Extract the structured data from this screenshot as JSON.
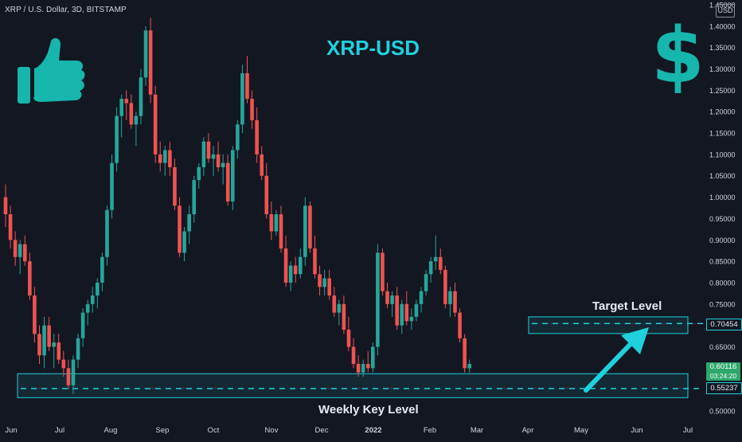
{
  "header": {
    "symbol_line": "XRP / U.S. Dollar, 3D, BITSTAMP",
    "title": "XRP-USD",
    "dollar_glyph": "$",
    "currency": "USD"
  },
  "annotations": {
    "target_label": "Target Level",
    "weekly_label": "Weekly Key Level",
    "target_price": "0.70454",
    "weekly_price": "0.55237",
    "last_price": "0.60116",
    "countdown": "03:24:20"
  },
  "icons": {
    "thumbs_up": "thumbs-up-icon",
    "arrow": "arrow-up-right-icon"
  },
  "colors": {
    "background": "#131722",
    "up": "#26a69a",
    "down": "#ef5350",
    "accent": "#1fd1dc",
    "thumb": "#16b6ad",
    "last_price_bg": "#2ea76b"
  },
  "chart_data": {
    "type": "candlestick",
    "title": "XRP-USD",
    "subtitle": "XRP / U.S. Dollar, 3D, BITSTAMP",
    "xlabel": "",
    "ylabel": "",
    "ylim": [
      0.5,
      1.45
    ],
    "y_scale": "linear",
    "y_ticks": [
      "0.50000",
      "0.55000",
      "0.60000",
      "0.65000",
      "0.70000",
      "0.75000",
      "0.80000",
      "0.85000",
      "0.90000",
      "0.95000",
      "1.00000",
      "1.05000",
      "1.10000",
      "1.15000",
      "1.20000",
      "1.25000",
      "1.30000",
      "1.35000",
      "1.40000",
      "1.45000"
    ],
    "x_ticks": [
      "Jun",
      "Jul",
      "Aug",
      "Sep",
      "Oct",
      "Nov",
      "Dec",
      "2022",
      "Feb",
      "Mar",
      "Apr",
      "May",
      "Jun",
      "Jul"
    ],
    "grid": false,
    "series": [
      {
        "name": "XRP / U.S. Dollar",
        "candles": [
          [
            1.0,
            1.03,
            0.93,
            0.96
          ],
          [
            0.96,
            0.98,
            0.88,
            0.9
          ],
          [
            0.9,
            0.92,
            0.84,
            0.86
          ],
          [
            0.86,
            0.9,
            0.82,
            0.89
          ],
          [
            0.89,
            0.91,
            0.84,
            0.85
          ],
          [
            0.85,
            0.87,
            0.76,
            0.77
          ],
          [
            0.77,
            0.79,
            0.66,
            0.68
          ],
          [
            0.68,
            0.7,
            0.61,
            0.63
          ],
          [
            0.63,
            0.72,
            0.6,
            0.7
          ],
          [
            0.7,
            0.72,
            0.64,
            0.65
          ],
          [
            0.65,
            0.68,
            0.6,
            0.66
          ],
          [
            0.66,
            0.68,
            0.61,
            0.62
          ],
          [
            0.62,
            0.64,
            0.58,
            0.6
          ],
          [
            0.6,
            0.62,
            0.55,
            0.56
          ],
          [
            0.56,
            0.63,
            0.54,
            0.62
          ],
          [
            0.62,
            0.68,
            0.6,
            0.67
          ],
          [
            0.67,
            0.74,
            0.65,
            0.73
          ],
          [
            0.73,
            0.76,
            0.7,
            0.75
          ],
          [
            0.75,
            0.79,
            0.73,
            0.77
          ],
          [
            0.77,
            0.81,
            0.74,
            0.8
          ],
          [
            0.8,
            0.87,
            0.78,
            0.86
          ],
          [
            0.86,
            0.98,
            0.84,
            0.97
          ],
          [
            0.97,
            1.1,
            0.95,
            1.08
          ],
          [
            1.08,
            1.21,
            1.06,
            1.19
          ],
          [
            1.19,
            1.24,
            1.14,
            1.23
          ],
          [
            1.23,
            1.25,
            1.18,
            1.22
          ],
          [
            1.22,
            1.24,
            1.16,
            1.17
          ],
          [
            1.17,
            1.2,
            1.12,
            1.19
          ],
          [
            1.19,
            1.3,
            1.17,
            1.28
          ],
          [
            1.28,
            1.4,
            1.26,
            1.39
          ],
          [
            1.39,
            1.42,
            1.22,
            1.24
          ],
          [
            1.24,
            1.26,
            1.08,
            1.1
          ],
          [
            1.1,
            1.13,
            1.06,
            1.08
          ],
          [
            1.08,
            1.12,
            1.05,
            1.11
          ],
          [
            1.11,
            1.13,
            1.05,
            1.07
          ],
          [
            1.07,
            1.09,
            0.97,
            0.98
          ],
          [
            0.98,
            1.0,
            0.86,
            0.87
          ],
          [
            0.87,
            0.93,
            0.85,
            0.92
          ],
          [
            0.92,
            0.98,
            0.89,
            0.96
          ],
          [
            0.96,
            1.05,
            0.94,
            1.04
          ],
          [
            1.04,
            1.08,
            1.02,
            1.07
          ],
          [
            1.07,
            1.14,
            1.05,
            1.13
          ],
          [
            1.13,
            1.15,
            1.08,
            1.09
          ],
          [
            1.09,
            1.12,
            1.05,
            1.1
          ],
          [
            1.1,
            1.13,
            1.06,
            1.07
          ],
          [
            1.07,
            1.1,
            1.03,
            1.08
          ],
          [
            1.08,
            1.1,
            0.98,
            0.99
          ],
          [
            0.99,
            1.12,
            0.97,
            1.11
          ],
          [
            1.11,
            1.18,
            1.09,
            1.17
          ],
          [
            1.17,
            1.31,
            1.15,
            1.29
          ],
          [
            1.29,
            1.33,
            1.22,
            1.23
          ],
          [
            1.23,
            1.25,
            1.16,
            1.18
          ],
          [
            1.18,
            1.21,
            1.08,
            1.1
          ],
          [
            1.1,
            1.12,
            1.04,
            1.05
          ],
          [
            1.05,
            1.08,
            0.95,
            0.96
          ],
          [
            0.96,
            0.99,
            0.9,
            0.92
          ],
          [
            0.92,
            0.97,
            0.91,
            0.96
          ],
          [
            0.96,
            0.98,
            0.87,
            0.88
          ],
          [
            0.88,
            0.91,
            0.79,
            0.8
          ],
          [
            0.8,
            0.85,
            0.78,
            0.84
          ],
          [
            0.84,
            0.86,
            0.8,
            0.82
          ],
          [
            0.82,
            0.88,
            0.81,
            0.86
          ],
          [
            0.86,
            1.0,
            0.84,
            0.98
          ],
          [
            0.98,
            0.99,
            0.87,
            0.88
          ],
          [
            0.88,
            0.91,
            0.81,
            0.82
          ],
          [
            0.82,
            0.84,
            0.77,
            0.79
          ],
          [
            0.79,
            0.83,
            0.77,
            0.81
          ],
          [
            0.81,
            0.83,
            0.76,
            0.77
          ],
          [
            0.77,
            0.79,
            0.72,
            0.73
          ],
          [
            0.73,
            0.76,
            0.7,
            0.75
          ],
          [
            0.75,
            0.77,
            0.68,
            0.69
          ],
          [
            0.69,
            0.72,
            0.64,
            0.65
          ],
          [
            0.65,
            0.67,
            0.6,
            0.61
          ],
          [
            0.61,
            0.63,
            0.58,
            0.59
          ],
          [
            0.59,
            0.62,
            0.58,
            0.61
          ],
          [
            0.61,
            0.64,
            0.59,
            0.6
          ],
          [
            0.6,
            0.66,
            0.59,
            0.65
          ],
          [
            0.65,
            0.89,
            0.63,
            0.87
          ],
          [
            0.87,
            0.88,
            0.77,
            0.78
          ],
          [
            0.78,
            0.8,
            0.74,
            0.75
          ],
          [
            0.75,
            0.78,
            0.72,
            0.77
          ],
          [
            0.77,
            0.79,
            0.69,
            0.7
          ],
          [
            0.7,
            0.76,
            0.68,
            0.75
          ],
          [
            0.75,
            0.78,
            0.7,
            0.71
          ],
          [
            0.71,
            0.74,
            0.69,
            0.72
          ],
          [
            0.72,
            0.76,
            0.71,
            0.75
          ],
          [
            0.75,
            0.79,
            0.73,
            0.78
          ],
          [
            0.78,
            0.83,
            0.77,
            0.82
          ],
          [
            0.82,
            0.86,
            0.8,
            0.85
          ],
          [
            0.85,
            0.91,
            0.83,
            0.86
          ],
          [
            0.86,
            0.88,
            0.82,
            0.83
          ],
          [
            0.83,
            0.84,
            0.74,
            0.75
          ],
          [
            0.75,
            0.79,
            0.72,
            0.78
          ],
          [
            0.78,
            0.8,
            0.72,
            0.73
          ],
          [
            0.73,
            0.74,
            0.66,
            0.67
          ],
          [
            0.67,
            0.68,
            0.59,
            0.6
          ],
          [
            0.6,
            0.62,
            0.59,
            0.61
          ]
        ]
      }
    ],
    "boxes": [
      {
        "label": "Target Level",
        "range": [
          0.681,
          0.72
        ],
        "line": 0.70454
      },
      {
        "label": "Weekly Key Level",
        "range": [
          0.531,
          0.587
        ],
        "line": 0.55237
      }
    ],
    "last_price": 0.60116,
    "countdown": "03:24:20"
  }
}
